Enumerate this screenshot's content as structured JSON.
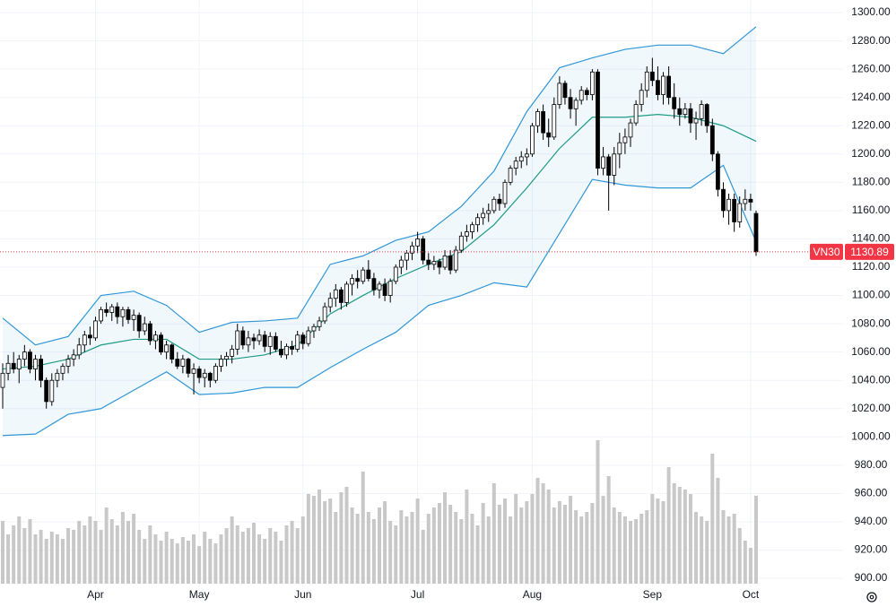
{
  "chart_data": {
    "type": "candlestick",
    "name": "VN30",
    "ylim": [
      893.7,
      1308.9
    ],
    "yticks": [
      {
        "value": 900,
        "label": "900.00"
      },
      {
        "value": 920,
        "label": "920.00"
      },
      {
        "value": 940,
        "label": "940.00"
      },
      {
        "value": 960,
        "label": "960.00"
      },
      {
        "value": 980,
        "label": "980.00"
      },
      {
        "value": 1000,
        "label": "1000.00"
      },
      {
        "value": 1020,
        "label": "1020.00"
      },
      {
        "value": 1040,
        "label": "1040.00"
      },
      {
        "value": 1060,
        "label": "1060.00"
      },
      {
        "value": 1080,
        "label": "1080.00"
      },
      {
        "value": 1100,
        "label": "1100.00"
      },
      {
        "value": 1120,
        "label": "1120.00"
      },
      {
        "value": 1140,
        "label": "1140.00"
      },
      {
        "value": 1160,
        "label": "1160.00"
      },
      {
        "value": 1180,
        "label": "1180.00"
      },
      {
        "value": 1200,
        "label": "1200.00"
      },
      {
        "value": 1220,
        "label": "1220.00"
      },
      {
        "value": 1240,
        "label": "1240.00"
      },
      {
        "value": 1260,
        "label": "1260.00"
      },
      {
        "value": 1280,
        "label": "1280.00"
      },
      {
        "value": 1300,
        "label": "1300.00"
      }
    ],
    "xticks": [
      {
        "value": 17,
        "label": "Apr"
      },
      {
        "value": 36,
        "label": "May"
      },
      {
        "value": 55,
        "label": "Jun"
      },
      {
        "value": 76,
        "label": "Jul"
      },
      {
        "value": 97,
        "label": "Aug"
      },
      {
        "value": 119,
        "label": "Sep"
      },
      {
        "value": 137,
        "label": "Oct"
      }
    ],
    "grid": true,
    "up_color": "#ffffff",
    "down_color": "#000000",
    "volume_color": "#c8c8c8",
    "ohlc": [
      [
        1035,
        1052,
        1020,
        1045
      ],
      [
        1045,
        1058,
        1040,
        1052
      ],
      [
        1052,
        1060,
        1045,
        1048
      ],
      [
        1048,
        1058,
        1038,
        1055
      ],
      [
        1055,
        1065,
        1050,
        1060
      ],
      [
        1060,
        1062,
        1045,
        1048
      ],
      [
        1048,
        1058,
        1040,
        1055
      ],
      [
        1055,
        1058,
        1035,
        1040
      ],
      [
        1040,
        1042,
        1020,
        1025
      ],
      [
        1025,
        1045,
        1022,
        1040
      ],
      [
        1040,
        1048,
        1035,
        1045
      ],
      [
        1045,
        1052,
        1040,
        1050
      ],
      [
        1050,
        1058,
        1045,
        1055
      ],
      [
        1055,
        1062,
        1050,
        1058
      ],
      [
        1058,
        1070,
        1055,
        1065
      ],
      [
        1065,
        1075,
        1060,
        1072
      ],
      [
        1072,
        1078,
        1065,
        1070
      ],
      [
        1070,
        1085,
        1068,
        1082
      ],
      [
        1082,
        1092,
        1080,
        1090
      ],
      [
        1090,
        1095,
        1085,
        1088
      ],
      [
        1088,
        1094,
        1082,
        1092
      ],
      [
        1092,
        1095,
        1080,
        1085
      ],
      [
        1085,
        1092,
        1078,
        1090
      ],
      [
        1090,
        1092,
        1080,
        1083
      ],
      [
        1083,
        1090,
        1075,
        1086
      ],
      [
        1086,
        1088,
        1070,
        1075
      ],
      [
        1075,
        1085,
        1072,
        1080
      ],
      [
        1080,
        1082,
        1065,
        1068
      ],
      [
        1068,
        1075,
        1062,
        1072
      ],
      [
        1072,
        1074,
        1058,
        1060
      ],
      [
        1060,
        1068,
        1055,
        1065
      ],
      [
        1065,
        1066,
        1052,
        1055
      ],
      [
        1055,
        1060,
        1048,
        1050
      ],
      [
        1050,
        1058,
        1045,
        1055
      ],
      [
        1055,
        1056,
        1042,
        1045
      ],
      [
        1045,
        1052,
        1030,
        1048
      ],
      [
        1048,
        1050,
        1038,
        1042
      ],
      [
        1042,
        1048,
        1035,
        1045
      ],
      [
        1045,
        1046,
        1035,
        1040
      ],
      [
        1040,
        1052,
        1038,
        1050
      ],
      [
        1050,
        1058,
        1046,
        1055
      ],
      [
        1055,
        1060,
        1050,
        1057
      ],
      [
        1057,
        1065,
        1052,
        1062
      ],
      [
        1062,
        1080,
        1058,
        1075
      ],
      [
        1075,
        1078,
        1062,
        1065
      ],
      [
        1065,
        1075,
        1060,
        1070
      ],
      [
        1070,
        1073,
        1062,
        1068
      ],
      [
        1068,
        1076,
        1065,
        1072
      ],
      [
        1072,
        1075,
        1060,
        1064
      ],
      [
        1064,
        1074,
        1058,
        1071
      ],
      [
        1071,
        1074,
        1060,
        1062
      ],
      [
        1062,
        1068,
        1056,
        1058
      ],
      [
        1058,
        1066,
        1055,
        1064
      ],
      [
        1064,
        1068,
        1058,
        1062
      ],
      [
        1062,
        1075,
        1060,
        1072
      ],
      [
        1072,
        1074,
        1062,
        1066
      ],
      [
        1066,
        1078,
        1064,
        1075
      ],
      [
        1075,
        1080,
        1070,
        1078
      ],
      [
        1078,
        1085,
        1075,
        1082
      ],
      [
        1082,
        1095,
        1080,
        1092
      ],
      [
        1092,
        1102,
        1088,
        1098
      ],
      [
        1098,
        1108,
        1092,
        1104
      ],
      [
        1104,
        1106,
        1090,
        1095
      ],
      [
        1095,
        1110,
        1092,
        1108
      ],
      [
        1108,
        1115,
        1100,
        1112
      ],
      [
        1112,
        1118,
        1105,
        1110
      ],
      [
        1110,
        1120,
        1108,
        1118
      ],
      [
        1118,
        1125,
        1110,
        1112
      ],
      [
        1112,
        1116,
        1100,
        1104
      ],
      [
        1104,
        1110,
        1098,
        1108
      ],
      [
        1108,
        1112,
        1096,
        1100
      ],
      [
        1100,
        1112,
        1095,
        1110
      ],
      [
        1110,
        1122,
        1108,
        1120
      ],
      [
        1120,
        1128,
        1115,
        1125
      ],
      [
        1125,
        1132,
        1118,
        1130
      ],
      [
        1130,
        1138,
        1125,
        1135
      ],
      [
        1135,
        1145,
        1130,
        1140
      ],
      [
        1140,
        1142,
        1122,
        1125
      ],
      [
        1125,
        1130,
        1118,
        1122
      ],
      [
        1122,
        1128,
        1118,
        1124
      ],
      [
        1124,
        1126,
        1115,
        1120
      ],
      [
        1120,
        1132,
        1118,
        1128
      ],
      [
        1128,
        1132,
        1115,
        1118
      ],
      [
        1118,
        1135,
        1116,
        1132
      ],
      [
        1132,
        1145,
        1130,
        1142
      ],
      [
        1142,
        1150,
        1138,
        1145
      ],
      [
        1145,
        1152,
        1140,
        1150
      ],
      [
        1150,
        1158,
        1145,
        1155
      ],
      [
        1155,
        1162,
        1150,
        1158
      ],
      [
        1158,
        1165,
        1152,
        1160
      ],
      [
        1160,
        1170,
        1158,
        1168
      ],
      [
        1168,
        1172,
        1160,
        1165
      ],
      [
        1165,
        1182,
        1162,
        1180
      ],
      [
        1180,
        1192,
        1178,
        1190
      ],
      [
        1190,
        1198,
        1185,
        1195
      ],
      [
        1195,
        1202,
        1190,
        1198
      ],
      [
        1198,
        1204,
        1192,
        1200
      ],
      [
        1200,
        1222,
        1198,
        1220
      ],
      [
        1220,
        1232,
        1215,
        1230
      ],
      [
        1230,
        1235,
        1210,
        1215
      ],
      [
        1215,
        1225,
        1205,
        1212
      ],
      [
        1212,
        1240,
        1210,
        1235
      ],
      [
        1235,
        1255,
        1232,
        1250
      ],
      [
        1250,
        1252,
        1235,
        1240
      ],
      [
        1240,
        1246,
        1225,
        1232
      ],
      [
        1232,
        1240,
        1220,
        1238
      ],
      [
        1238,
        1248,
        1235,
        1245
      ],
      [
        1245,
        1247,
        1238,
        1242
      ],
      [
        1242,
        1260,
        1238,
        1258
      ],
      [
        1258,
        1260,
        1185,
        1190
      ],
      [
        1190,
        1205,
        1185,
        1198
      ],
      [
        1198,
        1200,
        1160,
        1185
      ],
      [
        1185,
        1205,
        1178,
        1200
      ],
      [
        1200,
        1215,
        1190,
        1208
      ],
      [
        1208,
        1218,
        1200,
        1212
      ],
      [
        1212,
        1225,
        1205,
        1222
      ],
      [
        1222,
        1238,
        1220,
        1235
      ],
      [
        1235,
        1250,
        1230,
        1245
      ],
      [
        1245,
        1262,
        1240,
        1258
      ],
      [
        1258,
        1268,
        1248,
        1252
      ],
      [
        1252,
        1262,
        1238,
        1242
      ],
      [
        1242,
        1258,
        1235,
        1255
      ],
      [
        1255,
        1262,
        1235,
        1240
      ],
      [
        1240,
        1250,
        1225,
        1232
      ],
      [
        1232,
        1240,
        1220,
        1228
      ],
      [
        1228,
        1236,
        1225,
        1232
      ],
      [
        1232,
        1236,
        1215,
        1222
      ],
      [
        1222,
        1230,
        1210,
        1225
      ],
      [
        1225,
        1238,
        1220,
        1235
      ],
      [
        1235,
        1236,
        1215,
        1220
      ],
      [
        1220,
        1225,
        1195,
        1200
      ],
      [
        1200,
        1202,
        1170,
        1175
      ],
      [
        1175,
        1180,
        1155,
        1160
      ],
      [
        1160,
        1172,
        1150,
        1168
      ],
      [
        1168,
        1172,
        1145,
        1152
      ],
      [
        1152,
        1170,
        1148,
        1165
      ],
      [
        1165,
        1175,
        1160,
        1168
      ],
      [
        1168,
        1172,
        1160,
        1166
      ],
      [
        1158,
        1160,
        1128,
        1130.89
      ]
    ],
    "volume": [
      70,
      55,
      65,
      75,
      62,
      72,
      55,
      60,
      50,
      58,
      55,
      50,
      62,
      60,
      70,
      65,
      75,
      70,
      60,
      85,
      72,
      65,
      80,
      70,
      78,
      60,
      50,
      65,
      55,
      48,
      58,
      50,
      45,
      52,
      48,
      55,
      42,
      58,
      50,
      45,
      55,
      62,
      75,
      65,
      58,
      62,
      68,
      55,
      50,
      62,
      58,
      48,
      65,
      70,
      62,
      75,
      100,
      98,
      105,
      92,
      95,
      80,
      102,
      108,
      85,
      78,
      125,
      80,
      72,
      85,
      92,
      70,
      65,
      82,
      75,
      80,
      95,
      60,
      78,
      85,
      90,
      102,
      88,
      80,
      72,
      105,
      78,
      65,
      90,
      75,
      112,
      88,
      95,
      75,
      100,
      85,
      92,
      100,
      118,
      112,
      105,
      85,
      92,
      88,
      98,
      82,
      75,
      80,
      90,
      160,
      98,
      120,
      85,
      80,
      75,
      70,
      72,
      78,
      82,
      100,
      95,
      92,
      130,
      112,
      108,
      105,
      100,
      80,
      75,
      70,
      145,
      118,
      82,
      75,
      78,
      62,
      48,
      40,
      98
    ],
    "bands": {
      "x": [
        0,
        6,
        12,
        18,
        24,
        30,
        36,
        42,
        48,
        54,
        60,
        66,
        72,
        78,
        84,
        90,
        96,
        102,
        108,
        114,
        120,
        126,
        132,
        138
      ],
      "upper": [
        1084,
        1065,
        1071,
        1100,
        1103,
        1093,
        1074,
        1081,
        1082,
        1084,
        1122,
        1128,
        1139,
        1145,
        1163,
        1188,
        1230,
        1261,
        1268,
        1274,
        1277,
        1277,
        1271,
        1290
      ],
      "middle": [
        1048,
        1050,
        1055,
        1065,
        1069,
        1069,
        1055,
        1055,
        1058,
        1065,
        1087,
        1100,
        1112,
        1122,
        1131,
        1150,
        1176,
        1204,
        1226,
        1226,
        1228,
        1226,
        1220,
        1209
      ],
      "lower": [
        1001,
        1002,
        1016,
        1020,
        1033,
        1046,
        1030,
        1031,
        1035,
        1035,
        1049,
        1062,
        1074,
        1093,
        1100,
        1109,
        1106,
        1144,
        1182,
        1178,
        1176,
        1176,
        1192,
        1138
      ],
      "band_color": "#2f96d8",
      "middle_color": "#1d9a86"
    }
  }
}
